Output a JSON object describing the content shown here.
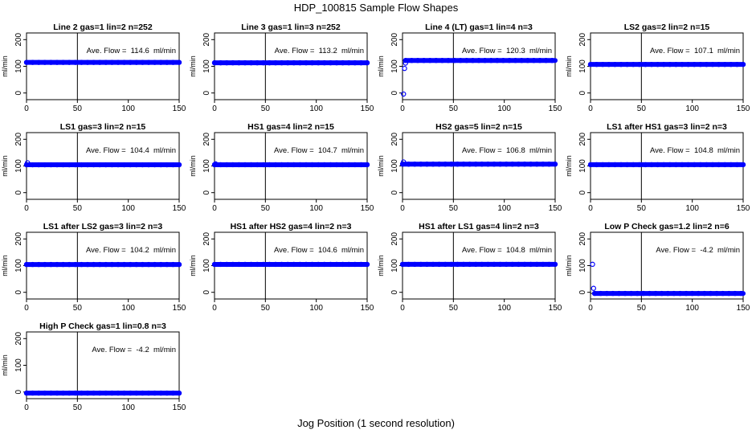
{
  "title": "HDP_100815  Sample Flow Shapes",
  "xlabel": "Jog Position (1 second resolution)",
  "colors": {
    "points": "#0000ff",
    "lines": "#000000",
    "background": "#ffffff"
  },
  "chart_data": [
    {
      "type": "scatter",
      "title": "Line 2 gas=1 lin=2 n=252",
      "ylabel": "ml/min",
      "annotation": "Ave. Flow =  114.6  ml/min",
      "mean": 114.6,
      "vline": 50,
      "xlim": [
        0,
        150
      ],
      "ylim": [
        -25,
        225
      ],
      "xticks": [
        0,
        50,
        100,
        150
      ],
      "yticks": [
        0,
        100,
        200
      ],
      "x_range": [
        0,
        150
      ],
      "level": 114.6,
      "extra_points": []
    },
    {
      "type": "scatter",
      "title": "Line 3 gas=1 lin=3 n=252",
      "ylabel": "ml/min",
      "annotation": "Ave. Flow =  113.2  ml/min",
      "mean": 113.2,
      "vline": 50,
      "xlim": [
        0,
        150
      ],
      "ylim": [
        -25,
        225
      ],
      "xticks": [
        0,
        50,
        100,
        150
      ],
      "yticks": [
        0,
        100,
        200
      ],
      "x_range": [
        0,
        150
      ],
      "level": 113.2,
      "extra_points": []
    },
    {
      "type": "scatter",
      "title": "Line 4 (LT) gas=1 lin=4 n=3",
      "ylabel": "ml/min",
      "annotation": "Ave. Flow =  120.3  ml/min",
      "mean": 120.3,
      "vline": 50,
      "xlim": [
        0,
        150
      ],
      "ylim": [
        -25,
        225
      ],
      "xticks": [
        0,
        50,
        100,
        150
      ],
      "yticks": [
        0,
        100,
        200
      ],
      "x_range": [
        3,
        150
      ],
      "level": 122,
      "extra_points": [
        [
          1,
          -4
        ],
        [
          2,
          92
        ],
        [
          3,
          112
        ]
      ]
    },
    {
      "type": "scatter",
      "title": "LS2 gas=2 lin=2 n=15",
      "ylabel": "ml/min",
      "annotation": "Ave. Flow =  107.1  ml/min",
      "mean": 107.1,
      "vline": 50,
      "xlim": [
        0,
        150
      ],
      "ylim": [
        -25,
        225
      ],
      "xticks": [
        0,
        50,
        100,
        150
      ],
      "yticks": [
        0,
        100,
        200
      ],
      "x_range": [
        0,
        150
      ],
      "level": 107.1,
      "extra_points": []
    },
    {
      "type": "scatter",
      "title": "LS1 gas=3 lin=2 n=15",
      "ylabel": "ml/min",
      "annotation": "Ave. Flow =  104.4  ml/min",
      "mean": 104.4,
      "vline": 50,
      "xlim": [
        0,
        150
      ],
      "ylim": [
        -25,
        225
      ],
      "xticks": [
        0,
        50,
        100,
        150
      ],
      "yticks": [
        0,
        100,
        200
      ],
      "x_range": [
        0,
        150
      ],
      "level": 104.4,
      "extra_points": [
        [
          1,
          112
        ]
      ]
    },
    {
      "type": "scatter",
      "title": "HS1 gas=4 lin=2 n=15",
      "ylabel": "ml/min",
      "annotation": "Ave. Flow =  104.7  ml/min",
      "mean": 104.7,
      "vline": 50,
      "xlim": [
        0,
        150
      ],
      "ylim": [
        -25,
        225
      ],
      "xticks": [
        0,
        50,
        100,
        150
      ],
      "yticks": [
        0,
        100,
        200
      ],
      "x_range": [
        0,
        150
      ],
      "level": 104.7,
      "extra_points": [
        [
          1,
          108
        ]
      ]
    },
    {
      "type": "scatter",
      "title": "HS2 gas=5 lin=2 n=15",
      "ylabel": "ml/min",
      "annotation": "Ave. Flow =  106.8  ml/min",
      "mean": 106.8,
      "vline": 50,
      "xlim": [
        0,
        150
      ],
      "ylim": [
        -25,
        225
      ],
      "xticks": [
        0,
        50,
        100,
        150
      ],
      "yticks": [
        0,
        100,
        200
      ],
      "x_range": [
        0,
        150
      ],
      "level": 106.8,
      "extra_points": [
        [
          1,
          115
        ]
      ]
    },
    {
      "type": "scatter",
      "title": "LS1 after HS1 gas=3 lin=2 n=3",
      "ylabel": "ml/min",
      "annotation": "Ave. Flow =  104.8  ml/min",
      "mean": 104.8,
      "vline": 50,
      "xlim": [
        0,
        150
      ],
      "ylim": [
        -25,
        225
      ],
      "xticks": [
        0,
        50,
        100,
        150
      ],
      "yticks": [
        0,
        100,
        200
      ],
      "x_range": [
        0,
        150
      ],
      "level": 104.8,
      "extra_points": []
    },
    {
      "type": "scatter",
      "title": "LS1 after LS2 gas=3 lin=2 n=3",
      "ylabel": "ml/min",
      "annotation": "Ave. Flow =  104.2  ml/min",
      "mean": 104.2,
      "vline": 50,
      "xlim": [
        0,
        150
      ],
      "ylim": [
        -25,
        225
      ],
      "xticks": [
        0,
        50,
        100,
        150
      ],
      "yticks": [
        0,
        100,
        200
      ],
      "x_range": [
        0,
        150
      ],
      "level": 104.2,
      "extra_points": []
    },
    {
      "type": "scatter",
      "title": "HS1 after HS2 gas=4 lin=2 n=3",
      "ylabel": "ml/min",
      "annotation": "Ave. Flow =  104.6  ml/min",
      "mean": 104.6,
      "vline": 50,
      "xlim": [
        0,
        150
      ],
      "ylim": [
        -25,
        225
      ],
      "xticks": [
        0,
        50,
        100,
        150
      ],
      "yticks": [
        0,
        100,
        200
      ],
      "x_range": [
        0,
        150
      ],
      "level": 104.6,
      "extra_points": []
    },
    {
      "type": "scatter",
      "title": "HS1 after LS1 gas=4 lin=2 n=3",
      "ylabel": "ml/min",
      "annotation": "Ave. Flow =  104.8  ml/min",
      "mean": 104.8,
      "vline": 50,
      "xlim": [
        0,
        150
      ],
      "ylim": [
        -25,
        225
      ],
      "xticks": [
        0,
        50,
        100,
        150
      ],
      "yticks": [
        0,
        100,
        200
      ],
      "x_range": [
        0,
        150
      ],
      "level": 104.8,
      "extra_points": []
    },
    {
      "type": "scatter",
      "title": "Low P Check gas=1.2 lin=2 n=6",
      "ylabel": "ml/min",
      "annotation": "Ave. Flow =  -4.2  ml/min",
      "mean": -4.2,
      "vline": 50,
      "xlim": [
        0,
        150
      ],
      "ylim": [
        -25,
        225
      ],
      "xticks": [
        0,
        50,
        100,
        150
      ],
      "yticks": [
        0,
        100,
        200
      ],
      "x_range": [
        4,
        150
      ],
      "level": -4.2,
      "extra_points": [
        [
          2,
          105
        ],
        [
          3,
          15
        ]
      ]
    },
    {
      "type": "scatter",
      "title": "High P Check gas=1 lin=0.8 n=3",
      "ylabel": "ml/min",
      "annotation": "Ave. Flow =  -4.2  ml/min",
      "mean": -4.2,
      "vline": 50,
      "xlim": [
        0,
        150
      ],
      "ylim": [
        -25,
        225
      ],
      "xticks": [
        0,
        50,
        100,
        150
      ],
      "yticks": [
        0,
        100,
        200
      ],
      "x_range": [
        0,
        150
      ],
      "level": -4.2,
      "extra_points": []
    }
  ]
}
